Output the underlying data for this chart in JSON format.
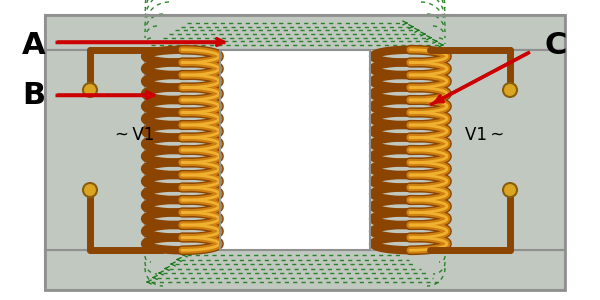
{
  "bg_color": "#ffffff",
  "core_color": "#c0c8c0",
  "core_border": "#909090",
  "coil_color_outer": "#8B4500",
  "coil_color_mid": "#CD7F10",
  "coil_color_light": "#F0B030",
  "wire_color": "#CD7F10",
  "wire_dark": "#8B4500",
  "arrow_color": "#1a7a1a",
  "terminal_color": "#DAA520",
  "terminal_border": "#8B5E0A",
  "red_color": "#CC0000",
  "text_color": "#000000",
  "label_A": "A",
  "label_B": "B",
  "label_C": "C",
  "label_V1": "V1"
}
